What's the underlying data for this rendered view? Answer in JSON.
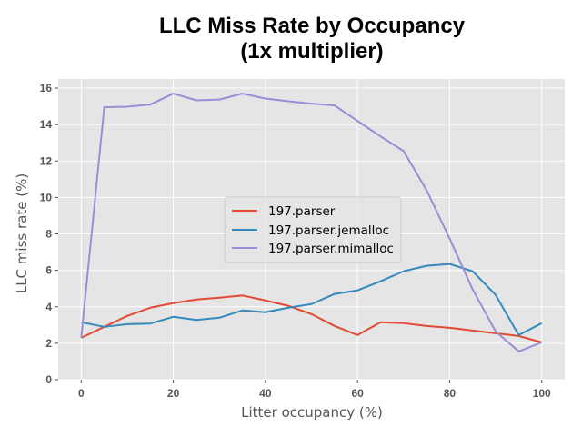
{
  "chart_data": {
    "type": "line",
    "title": "LLC Miss Rate by Occupancy",
    "subtitle": "(1x multiplier)",
    "xlabel": "Litter occupancy (%)",
    "ylabel": "LLC miss rate (%)",
    "xlim": [
      -5,
      105
    ],
    "ylim": [
      0,
      16.5
    ],
    "xticks": [
      0,
      20,
      40,
      60,
      80,
      100
    ],
    "yticks": [
      0,
      2,
      4,
      6,
      8,
      10,
      12,
      14,
      16
    ],
    "grid": true,
    "legend_position": "center",
    "x": [
      0,
      5,
      10,
      15,
      20,
      25,
      30,
      35,
      40,
      45,
      50,
      55,
      60,
      65,
      70,
      75,
      80,
      85,
      90,
      95,
      100
    ],
    "series": [
      {
        "name": "197.parser",
        "color": "#e24a33",
        "values": [
          2.3,
          2.9,
          3.5,
          3.95,
          4.2,
          4.4,
          4.5,
          4.62,
          4.35,
          4.05,
          3.6,
          2.95,
          2.45,
          3.15,
          3.1,
          2.95,
          2.85,
          2.7,
          2.55,
          2.4,
          2.05
        ]
      },
      {
        "name": "197.parser.jemalloc",
        "color": "#348abd",
        "values": [
          3.15,
          2.9,
          3.05,
          3.08,
          3.45,
          3.28,
          3.4,
          3.8,
          3.7,
          3.95,
          4.15,
          4.7,
          4.9,
          5.4,
          5.95,
          6.25,
          6.35,
          5.95,
          4.65,
          2.45,
          3.1
        ]
      },
      {
        "name": "197.parser.mimalloc",
        "color": "#988ed5",
        "values": [
          2.3,
          14.95,
          14.98,
          15.1,
          15.7,
          15.33,
          15.37,
          15.7,
          15.43,
          15.28,
          15.15,
          15.05,
          14.2,
          13.35,
          12.55,
          10.4,
          7.75,
          4.95,
          2.65,
          1.55,
          2.05
        ]
      }
    ]
  }
}
